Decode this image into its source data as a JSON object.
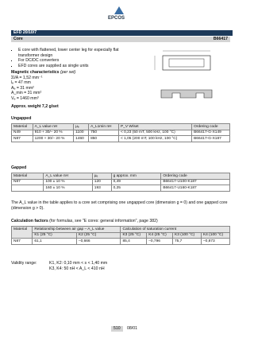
{
  "logo": "EPCOS",
  "header": {
    "product": "EFD 20/10/7",
    "section": "Core",
    "code": "B66417"
  },
  "bullets": [
    "E core with flattened, lower center leg for especially flat transformer design",
    "For DC/DC converters",
    "EFD cores are supplied as single units"
  ],
  "magnetic": {
    "title": "Magnetic characteristics",
    "note": "(per set)",
    "items": [
      "Σl/A = 1,52 mm⁻¹",
      "lₑ = 47 mm",
      "Aₑ = 31 mm²",
      "A_min = 31 mm²",
      "Vₑ = 1460 mm³"
    ]
  },
  "weight": "Approx. weight 7,2 g/set",
  "ungapped": {
    "title": "Ungapped",
    "header": [
      "Material",
      "A_L value nH",
      "μₑ",
      "A_L1min nH",
      "P_V W/set",
      "Ordering code"
    ],
    "rows": [
      [
        "N49",
        "910 + 30/– 20 %",
        "1100",
        "750",
        "< 0,23 (50 mT, 500 kHz, 100 °C)",
        "B66417-G-X149"
      ],
      [
        "N87",
        "1200 + 30/– 20 %",
        "1460",
        "850",
        "< 1,05 (200 mT, 100 kHz, 100 °C)",
        "B66417-G-X187"
      ]
    ]
  },
  "gapped": {
    "title": "Gapped",
    "header": [
      "Material",
      "A_L value nH",
      "μₑ",
      "g approx. mm",
      "Ordering code"
    ],
    "rows": [
      [
        "N87",
        "100 ± 10 %",
        "120",
        "0,49",
        "B66417-U100-K187"
      ],
      [
        "160 ± 10 %",
        "193",
        "0,25",
        "B66417-U160-K187"
      ]
    ],
    "note": "The A_L value in the table applies to a core set comprising one ungapped core (dimension g = 0) and one gapped core (dimension g > 0)."
  },
  "calc": {
    "title": "Calculation factors",
    "note": "(for formulas, see \"E cores: general information\", page 382)",
    "header": [
      "Material",
      "Relationship between air gap – A_L value",
      "Calculation of saturation current"
    ],
    "subheader": [
      "K1 (25 °C)",
      "K2 (25 °C)",
      "K3 (25 °C)",
      "K4 (25 °C)",
      "K3 (100 °C)",
      "K4 (100 °C)"
    ],
    "row": [
      "N87",
      "61,1",
      "–0,666",
      "85,4",
      "–0,796",
      "75,7",
      "–0,873"
    ]
  },
  "validity": {
    "label": "Validity range:",
    "lines": [
      "K1, K2: 0,10 mm < s < 1,40 mm",
      "K3, K4: 50 nH < A_L < 410 nH"
    ]
  },
  "footer": {
    "page": "510",
    "date": "08/01"
  }
}
